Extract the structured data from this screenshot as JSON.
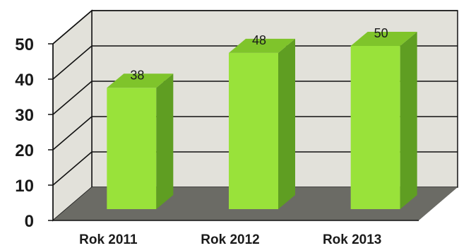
{
  "chart_data": {
    "type": "bar",
    "categories": [
      "Rok 2011",
      "Rok 2012",
      "Rok 2013"
    ],
    "values": [
      38,
      48,
      50
    ],
    "data_labels": [
      "38",
      "48",
      "50"
    ],
    "yticks": [
      "0",
      "10",
      "20",
      "30",
      "40",
      "50"
    ],
    "ylim": [
      0,
      50
    ],
    "grid": true,
    "colors": {
      "bar_front": "#99e23a",
      "bar_side": "#5f9e22",
      "bar_top": "#7fc42b",
      "wall": "#e2e1da",
      "floor": "#6b6b65",
      "grid": "#111111"
    }
  }
}
